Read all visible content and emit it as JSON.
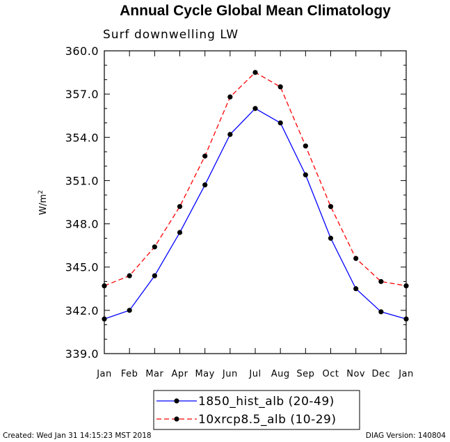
{
  "chart_data": {
    "type": "line",
    "title": "Annual Cycle Global Mean Climatology",
    "subtitle": "Surf downwelling LW",
    "ylabel": "W/m",
    "ylabel_superscript": "2",
    "xlabel": "",
    "categories": [
      "Jan",
      "Feb",
      "Mar",
      "Apr",
      "May",
      "Jun",
      "Jul",
      "Aug",
      "Sep",
      "Oct",
      "Nov",
      "Dec",
      "Jan"
    ],
    "ylim": [
      339.0,
      360.0
    ],
    "yticks": [
      "339.0",
      "342.0",
      "345.0",
      "348.0",
      "351.0",
      "354.0",
      "357.0",
      "360.0"
    ],
    "grid": false,
    "legend_position": "bottom-center",
    "series": [
      {
        "name": "1850_hist_alb (20-49)",
        "color": "#0000ff",
        "line_style": "solid",
        "values": [
          341.4,
          342.0,
          344.4,
          347.4,
          350.7,
          354.2,
          356.0,
          355.0,
          351.4,
          347.0,
          343.5,
          341.9,
          341.4
        ]
      },
      {
        "name": "10xrcp8.5_alb (10-29)",
        "color": "#ff0000",
        "line_style": "dashed",
        "values": [
          343.7,
          344.4,
          346.4,
          349.2,
          352.7,
          356.8,
          358.5,
          357.5,
          353.4,
          349.2,
          345.6,
          344.0,
          343.7
        ]
      }
    ]
  },
  "footer": {
    "created": "Created: Wed Jan 31 14:15:23 MST 2018",
    "version": "DIAG Version: 140804"
  }
}
